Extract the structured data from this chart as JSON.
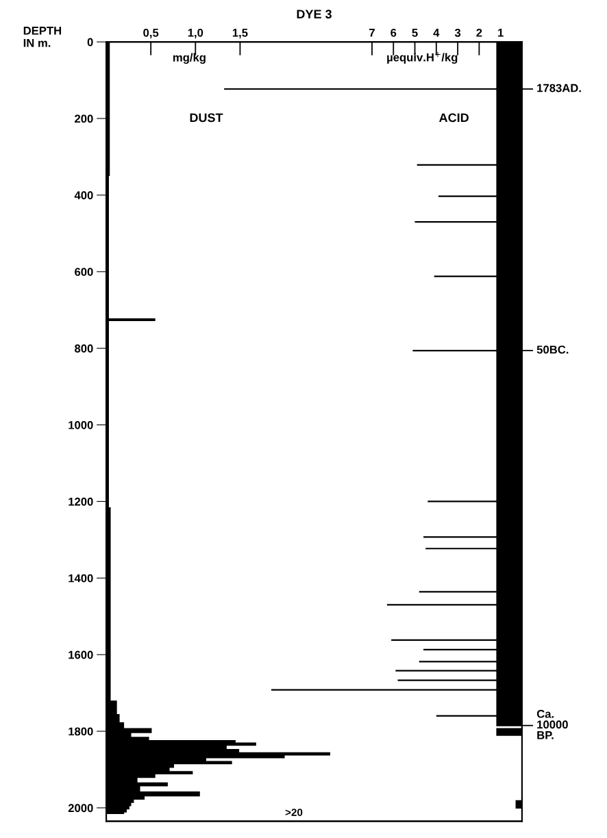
{
  "chart_data": {
    "type": "area",
    "orientation": "horizontal",
    "title": "DYE 3",
    "ylabel": "DEPTH\nIN m.",
    "xlabel": "mg/kg",
    "x2label": "µequiv.H$^{+}$/kg",
    "ylim": [
      2035,
      0
    ],
    "yticks": [
      0,
      200,
      400,
      600,
      800,
      1000,
      1200,
      1400,
      1600,
      1800,
      2000
    ],
    "xlim": [
      0,
      4.66
    ],
    "xticks": [
      {
        "value": 0.5,
        "label": "0,5"
      },
      {
        "value": 1.0,
        "label": "1,0"
      },
      {
        "value": 1.5,
        "label": "1,5"
      }
    ],
    "x2lim": [
      19.4,
      0
    ],
    "x2ticks": [
      7,
      6,
      5,
      4,
      3,
      2,
      1
    ],
    "ref_lines": [
      {
        "axis": "y",
        "value": 123,
        "label": "1783AD."
      },
      {
        "axis": "y",
        "value": 806,
        "label": "50BC."
      },
      {
        "axis": "y",
        "value": 1785,
        "label": "Ca.\n10000\nBP."
      }
    ],
    "grid": false,
    "annotations": [
      "DUST",
      "ACID",
      ">20"
    ],
    "series": [
      {
        "color": "#000000",
        "x": [
          0,
          700,
          720,
          724,
          727,
          731,
          1700,
          1740,
          1770,
          1783,
          1801,
          1809,
          1820,
          1826,
          1833,
          1843,
          1850,
          1860,
          1867,
          1874,
          1881,
          1891,
          1900,
          1908,
          1917,
          1927,
          1940,
          1948,
          1966,
          1974,
          1983,
          1991,
          2000,
          2008,
          2016
        ],
        "values": [
          0.04,
          0.03,
          0.03,
          0.55,
          0.55,
          0.03,
          0.05,
          0.12,
          0.15,
          0.2,
          0.51,
          0.28,
          0.48,
          1.45,
          1.68,
          1.35,
          1.49,
          2.51,
          2.0,
          1.12,
          1.41,
          0.76,
          0.71,
          0.97,
          0.55,
          0.35,
          0.69,
          0.38,
          1.05,
          0.43,
          0.31,
          0.28,
          0.26,
          0.23,
          0.2
        ]
      },
      {
        "color": "#000000",
        "axis": "x2",
        "x": [
          0,
          119,
          123,
          127,
          317,
          321,
          325,
          399,
          403,
          407,
          466,
          470,
          474,
          608,
          612,
          616,
          802,
          806,
          810,
          1196,
          1200,
          1204,
          1289,
          1293,
          1297,
          1319,
          1323,
          1327,
          1432,
          1436,
          1440,
          1466,
          1470,
          1474,
          1558,
          1562,
          1566,
          1583,
          1587,
          1591,
          1614,
          1618,
          1622,
          1638,
          1642,
          1646,
          1663,
          1667,
          1671,
          1688,
          1692,
          1696,
          1756,
          1760,
          1764,
          1785,
          1789,
          1795,
          1810,
          1814,
          1978,
          1982,
          2000,
          2004
        ],
        "values": [
          1.2,
          1.2,
          13.9,
          1.2,
          1.2,
          4.9,
          1.2,
          1.2,
          3.9,
          1.2,
          1.2,
          5.0,
          1.2,
          1.2,
          4.1,
          1.2,
          1.2,
          5.1,
          1.2,
          1.2,
          4.4,
          1.2,
          1.2,
          4.6,
          1.2,
          1.2,
          4.5,
          1.2,
          1.2,
          4.8,
          1.2,
          1.2,
          6.3,
          1.2,
          1.2,
          6.1,
          1.2,
          1.2,
          4.6,
          1.2,
          1.2,
          4.8,
          1.2,
          1.2,
          5.9,
          1.2,
          1.2,
          5.8,
          1.2,
          1.2,
          11.7,
          1.2,
          1.2,
          4.0,
          1.2,
          1.2,
          0,
          1.2,
          1.2,
          0,
          0,
          0.3,
          0.3,
          0
        ]
      }
    ]
  }
}
